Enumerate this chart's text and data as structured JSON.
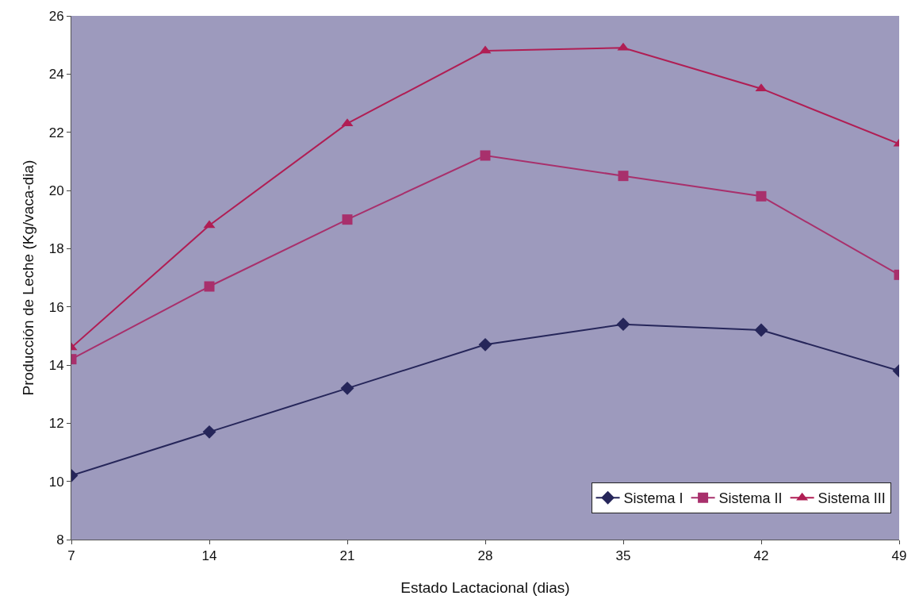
{
  "chart_data": {
    "type": "line",
    "xlabel": "Estado Lactacional (dias)",
    "ylabel": "Producción de Leche (Kg/vaca-dia)",
    "x": [
      7,
      14,
      21,
      28,
      35,
      42,
      49
    ],
    "series": [
      {
        "name": "Sistema I",
        "color": "#26265a",
        "marker": "diamond",
        "values": [
          10.2,
          11.7,
          13.2,
          14.7,
          15.4,
          15.2,
          13.8
        ]
      },
      {
        "name": "Sistema II",
        "color": "#a8306c",
        "marker": "square",
        "values": [
          14.2,
          16.7,
          19.0,
          21.2,
          20.5,
          19.8,
          17.1
        ]
      },
      {
        "name": "Sistema III",
        "color": "#b01e54",
        "marker": "triangle",
        "values": [
          14.6,
          18.8,
          22.3,
          24.8,
          24.9,
          23.5,
          21.6
        ]
      }
    ],
    "xlim": [
      7,
      49
    ],
    "xticks": [
      7,
      14,
      21,
      28,
      35,
      42,
      49
    ],
    "ylim": [
      8,
      26
    ],
    "yticks": [
      8,
      10,
      12,
      14,
      16,
      18,
      20,
      22,
      24,
      26
    ],
    "grid": false,
    "legend": "bottom right",
    "line_style": "solid"
  }
}
